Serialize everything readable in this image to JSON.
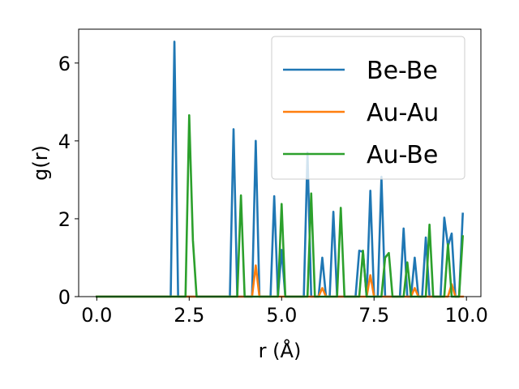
{
  "chart_data": {
    "type": "line",
    "xlabel": "r (Å)",
    "ylabel": "g(r)",
    "xlim": [
      -0.49,
      10.39
    ],
    "ylim": [
      0,
      6.87
    ],
    "xticks": [
      0.0,
      2.5,
      5.0,
      7.5,
      10.0
    ],
    "xtick_labels": [
      "0.0",
      "2.5",
      "5.0",
      "7.5",
      "10.0"
    ],
    "yticks": [
      0,
      2,
      4,
      6
    ],
    "ytick_labels": [
      "0",
      "2",
      "4",
      "6"
    ],
    "grid": false,
    "legend_position": "upper right",
    "series": [
      {
        "name": "Be-Be",
        "color": "#1f77b4",
        "x": [
          0.0,
          2.0,
          2.1,
          2.2,
          3.6,
          3.7,
          3.8,
          4.2,
          4.3,
          4.4,
          4.7,
          4.8,
          4.9,
          5.0,
          5.1,
          5.6,
          5.7,
          5.8,
          6.0,
          6.1,
          6.2,
          6.3,
          6.4,
          6.5,
          7.0,
          7.1,
          7.2,
          7.3,
          7.4,
          7.5,
          7.6,
          7.7,
          7.8,
          7.9,
          8.0,
          8.2,
          8.3,
          8.4,
          8.5,
          8.6,
          8.7,
          8.8,
          8.9,
          9.0,
          9.3,
          9.4,
          9.5,
          9.6,
          9.7,
          9.8,
          9.9
        ],
        "y": [
          0,
          0,
          6.55,
          0,
          0,
          4.3,
          0,
          0,
          4.0,
          0,
          0,
          2.58,
          0,
          1.2,
          0,
          0,
          3.7,
          0,
          0,
          1.0,
          0,
          0,
          2.18,
          0,
          0,
          1.18,
          1.15,
          0,
          2.72,
          0,
          0,
          3.08,
          0,
          0,
          0,
          0,
          1.75,
          0,
          0,
          1.0,
          0,
          0,
          1.52,
          0,
          0,
          2.03,
          1.3,
          1.62,
          0,
          0,
          2.13
        ]
      },
      {
        "name": "Au-Au",
        "color": "#ff7f0e",
        "x": [
          0.0,
          4.2,
          4.3,
          4.4,
          6.0,
          6.1,
          6.2,
          7.3,
          7.4,
          7.5,
          8.5,
          8.6,
          8.7,
          9.5,
          9.6,
          9.7,
          9.9
        ],
        "y": [
          0,
          0,
          0.8,
          0,
          0,
          0.22,
          0,
          0,
          0.55,
          0,
          0,
          0.22,
          0,
          0,
          0.32,
          0,
          0
        ]
      },
      {
        "name": "Au-Be",
        "color": "#2ca02c",
        "x": [
          0.0,
          2.4,
          2.5,
          2.6,
          2.7,
          3.8,
          3.9,
          4.0,
          4.9,
          5.0,
          5.1,
          5.7,
          5.8,
          5.9,
          6.5,
          6.6,
          6.7,
          7.1,
          7.2,
          7.3,
          7.7,
          7.8,
          7.9,
          8.0,
          8.3,
          8.4,
          8.5,
          8.9,
          9.0,
          9.1,
          9.4,
          9.5,
          9.6,
          9.8,
          9.9
        ],
        "y": [
          0,
          0,
          4.66,
          1.45,
          0,
          0,
          2.6,
          0,
          0,
          2.38,
          0,
          0,
          2.65,
          0,
          0,
          2.28,
          0,
          0,
          1.18,
          0,
          0,
          1.0,
          1.12,
          0,
          0,
          0.88,
          0,
          0,
          1.85,
          0,
          0,
          1.35,
          0,
          0,
          1.55
        ]
      }
    ]
  }
}
